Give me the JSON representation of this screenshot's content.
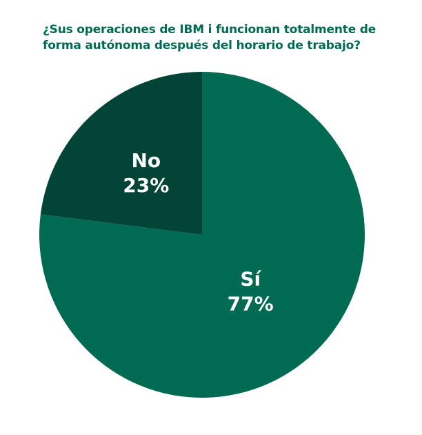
{
  "chart_data": {
    "type": "pie",
    "title": "¿Sus operaciones de IBM i funcionan totalmente de forma autónoma después del horario de trabajo?",
    "slices": [
      {
        "label": "Sí",
        "value": 77,
        "value_label": "77%",
        "color": "#006a53"
      },
      {
        "label": "No",
        "value": 23,
        "value_label": "23%",
        "color": "#024536"
      }
    ],
    "legend": "none"
  }
}
